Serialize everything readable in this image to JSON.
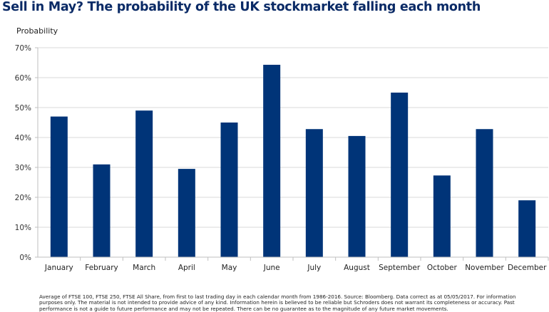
{
  "chart_data": {
    "type": "bar",
    "title": "Sell in May? The probability of the UK stockmarket falling each month",
    "ylabel": "Probability",
    "xlabel": "",
    "categories": [
      "January",
      "February",
      "March",
      "April",
      "May",
      "June",
      "July",
      "August",
      "September",
      "October",
      "November",
      "December"
    ],
    "values": [
      47,
      31,
      49,
      29.5,
      45,
      64.3,
      42.8,
      40.5,
      55,
      27.3,
      42.8,
      19
    ],
    "ylim": [
      0,
      70
    ],
    "yticks": [
      0,
      10,
      20,
      30,
      40,
      50,
      60,
      70
    ],
    "ytick_labels": [
      "0%",
      "10%",
      "20%",
      "30%",
      "40%",
      "50%",
      "60%",
      "70%"
    ],
    "grid": true,
    "bar_color": "#003478"
  },
  "footnote": "Average of FTSE 100, FTSE 250, FTSE All Share, from first to last trading day in each calendar month from 1986-2016. Source: Bloomberg. Data correct as at 05/05/2017. For information purposes only. The material is not intended to provide advice of any kind. Information herein is believed to be reliable but Schroders does not warrant its completeness or accuracy. Past performance is not a guide to future performance and may not be repeated. There can be no guarantee as to the magnitude of any future market movements."
}
